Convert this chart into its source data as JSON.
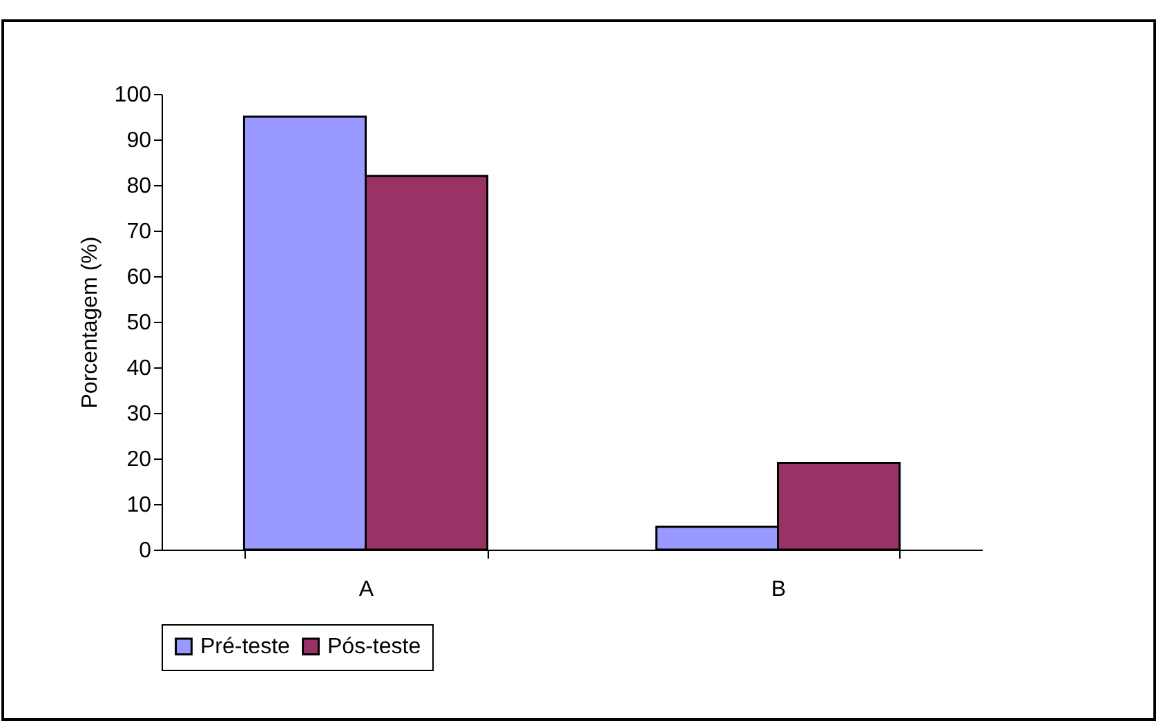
{
  "chart_data": {
    "type": "bar",
    "ylabel": "Porcentagem (%)",
    "categories": [
      "A",
      "B"
    ],
    "series": [
      {
        "name": "Pré-teste",
        "color": "#9999ff",
        "values": [
          95,
          5
        ]
      },
      {
        "name": "Pós-teste",
        "color": "#993366",
        "values": [
          82,
          19
        ]
      }
    ],
    "ylim": [
      0,
      100
    ],
    "yticks": [
      0,
      10,
      20,
      30,
      40,
      50,
      60,
      70,
      80,
      90,
      100
    ],
    "grid": false,
    "legend": "bottom"
  }
}
